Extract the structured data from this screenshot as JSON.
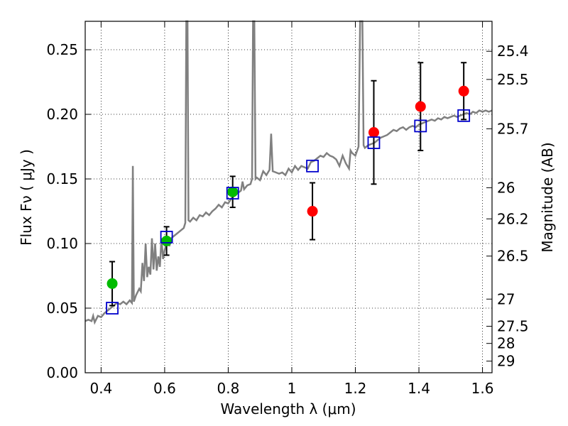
{
  "chart_data": {
    "type": "scatter",
    "xlabel": "Wavelength  λ (μm)",
    "ylabel": "Flux  Fν  ( μJy )",
    "ylabel_right": "Magnitude (AB)",
    "xlim": [
      0.35,
      1.63
    ],
    "ylim": [
      0.0,
      0.272
    ],
    "grid": true,
    "x_ticks": [
      {
        "value": 0.4,
        "label": "0.4"
      },
      {
        "value": 0.6,
        "label": "0.6"
      },
      {
        "value": 0.8,
        "label": "0.8"
      },
      {
        "value": 1.0,
        "label": "1"
      },
      {
        "value": 1.2,
        "label": "1.2"
      },
      {
        "value": 1.4,
        "label": "1.4"
      },
      {
        "value": 1.6,
        "label": "1.6"
      }
    ],
    "y_ticks": [
      {
        "value": 0.0,
        "label": "0.00"
      },
      {
        "value": 0.05,
        "label": "0.05"
      },
      {
        "value": 0.1,
        "label": "0.10"
      },
      {
        "value": 0.15,
        "label": "0.15"
      },
      {
        "value": 0.2,
        "label": "0.20"
      },
      {
        "value": 0.25,
        "label": "0.25"
      }
    ],
    "right_ticks": [
      {
        "label": "25.4",
        "flux": 0.2488
      },
      {
        "label": "25.5",
        "flux": 0.227
      },
      {
        "label": "25.7",
        "flux": 0.1888
      },
      {
        "label": "26",
        "flux": 0.1432
      },
      {
        "label": "26.2",
        "flux": 0.1191
      },
      {
        "label": "26.5",
        "flux": 0.0903
      },
      {
        "label": "27",
        "flux": 0.057
      },
      {
        "label": "27.5",
        "flux": 0.036
      },
      {
        "label": "28",
        "flux": 0.0227
      },
      {
        "label": "29",
        "flux": 0.009
      }
    ],
    "spectrum": {
      "color": "#808080",
      "points": [
        [
          0.35,
          0.04
        ],
        [
          0.36,
          0.041
        ],
        [
          0.37,
          0.04
        ],
        [
          0.375,
          0.044
        ],
        [
          0.38,
          0.039
        ],
        [
          0.39,
          0.044
        ],
        [
          0.4,
          0.043
        ],
        [
          0.41,
          0.046
        ],
        [
          0.42,
          0.048
        ],
        [
          0.43,
          0.05
        ],
        [
          0.44,
          0.052
        ],
        [
          0.45,
          0.054
        ],
        [
          0.46,
          0.053
        ],
        [
          0.47,
          0.055
        ],
        [
          0.48,
          0.053
        ],
        [
          0.49,
          0.056
        ],
        [
          0.497,
          0.054
        ],
        [
          0.5,
          0.16
        ],
        [
          0.503,
          0.055
        ],
        [
          0.51,
          0.06
        ],
        [
          0.52,
          0.065
        ],
        [
          0.525,
          0.063
        ],
        [
          0.53,
          0.085
        ],
        [
          0.535,
          0.071
        ],
        [
          0.54,
          0.1
        ],
        [
          0.545,
          0.074
        ],
        [
          0.55,
          0.082
        ],
        [
          0.555,
          0.076
        ],
        [
          0.56,
          0.104
        ],
        [
          0.565,
          0.08
        ],
        [
          0.57,
          0.1
        ],
        [
          0.575,
          0.079
        ],
        [
          0.58,
          0.09
        ],
        [
          0.585,
          0.082
        ],
        [
          0.59,
          0.104
        ],
        [
          0.595,
          0.088
        ],
        [
          0.6,
          0.095
        ],
        [
          0.605,
          0.099
        ],
        [
          0.61,
          0.103
        ],
        [
          0.615,
          0.098
        ],
        [
          0.62,
          0.104
        ],
        [
          0.63,
          0.106
        ],
        [
          0.64,
          0.108
        ],
        [
          0.65,
          0.11
        ],
        [
          0.66,
          0.112
        ],
        [
          0.665,
          0.116
        ],
        [
          0.668,
          0.272
        ],
        [
          0.672,
          0.272
        ],
        [
          0.675,
          0.118
        ],
        [
          0.68,
          0.117
        ],
        [
          0.69,
          0.12
        ],
        [
          0.7,
          0.118
        ],
        [
          0.71,
          0.122
        ],
        [
          0.72,
          0.121
        ],
        [
          0.73,
          0.124
        ],
        [
          0.74,
          0.122
        ],
        [
          0.75,
          0.125
        ],
        [
          0.76,
          0.127
        ],
        [
          0.77,
          0.13
        ],
        [
          0.78,
          0.128
        ],
        [
          0.79,
          0.132
        ],
        [
          0.8,
          0.131
        ],
        [
          0.81,
          0.135
        ],
        [
          0.82,
          0.137
        ],
        [
          0.83,
          0.139
        ],
        [
          0.84,
          0.141
        ],
        [
          0.845,
          0.148
        ],
        [
          0.85,
          0.142
        ],
        [
          0.86,
          0.145
        ],
        [
          0.87,
          0.146
        ],
        [
          0.875,
          0.15
        ],
        [
          0.878,
          0.272
        ],
        [
          0.882,
          0.272
        ],
        [
          0.886,
          0.15
        ],
        [
          0.89,
          0.151
        ],
        [
          0.9,
          0.149
        ],
        [
          0.91,
          0.156
        ],
        [
          0.92,
          0.153
        ],
        [
          0.93,
          0.157
        ],
        [
          0.935,
          0.185
        ],
        [
          0.94,
          0.156
        ],
        [
          0.95,
          0.155
        ],
        [
          0.96,
          0.154
        ],
        [
          0.97,
          0.155
        ],
        [
          0.98,
          0.153
        ],
        [
          0.99,
          0.158
        ],
        [
          1.0,
          0.155
        ],
        [
          1.01,
          0.16
        ],
        [
          1.02,
          0.157
        ],
        [
          1.03,
          0.16
        ],
        [
          1.04,
          0.159
        ],
        [
          1.05,
          0.158
        ],
        [
          1.06,
          0.163
        ],
        [
          1.07,
          0.164
        ],
        [
          1.08,
          0.166
        ],
        [
          1.09,
          0.168
        ],
        [
          1.1,
          0.167
        ],
        [
          1.11,
          0.17
        ],
        [
          1.12,
          0.168
        ],
        [
          1.13,
          0.167
        ],
        [
          1.14,
          0.165
        ],
        [
          1.15,
          0.16
        ],
        [
          1.16,
          0.168
        ],
        [
          1.17,
          0.162
        ],
        [
          1.18,
          0.158
        ],
        [
          1.185,
          0.172
        ],
        [
          1.19,
          0.17
        ],
        [
          1.2,
          0.168
        ],
        [
          1.21,
          0.175
        ],
        [
          1.215,
          0.272
        ],
        [
          1.222,
          0.272
        ],
        [
          1.226,
          0.176
        ],
        [
          1.23,
          0.174
        ],
        [
          1.24,
          0.176
        ],
        [
          1.25,
          0.177
        ],
        [
          1.26,
          0.178
        ],
        [
          1.27,
          0.18
        ],
        [
          1.28,
          0.182
        ],
        [
          1.29,
          0.183
        ],
        [
          1.3,
          0.184
        ],
        [
          1.31,
          0.186
        ],
        [
          1.32,
          0.188
        ],
        [
          1.33,
          0.187
        ],
        [
          1.34,
          0.189
        ],
        [
          1.35,
          0.19
        ],
        [
          1.36,
          0.188
        ],
        [
          1.37,
          0.19
        ],
        [
          1.38,
          0.191
        ],
        [
          1.39,
          0.19
        ],
        [
          1.4,
          0.192
        ],
        [
          1.41,
          0.193
        ],
        [
          1.42,
          0.194
        ],
        [
          1.43,
          0.195
        ],
        [
          1.44,
          0.196
        ],
        [
          1.45,
          0.195
        ],
        [
          1.46,
          0.197
        ],
        [
          1.47,
          0.196
        ],
        [
          1.48,
          0.198
        ],
        [
          1.49,
          0.197
        ],
        [
          1.5,
          0.198
        ],
        [
          1.51,
          0.199
        ],
        [
          1.52,
          0.198
        ],
        [
          1.53,
          0.199
        ],
        [
          1.54,
          0.2
        ],
        [
          1.55,
          0.201
        ],
        [
          1.56,
          0.2
        ],
        [
          1.57,
          0.202
        ],
        [
          1.58,
          0.201
        ],
        [
          1.59,
          0.203
        ],
        [
          1.6,
          0.202
        ],
        [
          1.61,
          0.203
        ],
        [
          1.62,
          0.202
        ],
        [
          1.63,
          0.203
        ]
      ]
    },
    "series": [
      {
        "color": "#00bb00",
        "marker": "circle",
        "points": [
          {
            "x": 0.435,
            "y": 0.069,
            "yerr": 0.017
          },
          {
            "x": 0.606,
            "y": 0.102,
            "yerr": 0.011
          },
          {
            "x": 0.814,
            "y": 0.14,
            "yerr": 0.012
          }
        ]
      },
      {
        "color": "#ff0000",
        "marker": "circle",
        "points": [
          {
            "x": 1.065,
            "y": 0.125,
            "yerr": 0.022
          },
          {
            "x": 1.258,
            "y": 0.186,
            "yerr": 0.04
          },
          {
            "x": 1.405,
            "y": 0.206,
            "yerr": 0.034
          },
          {
            "x": 1.541,
            "y": 0.218,
            "yerr": 0.022
          }
        ]
      },
      {
        "color": "#0000cc",
        "marker": "open-square",
        "points": [
          {
            "x": 0.435,
            "y": 0.05
          },
          {
            "x": 0.606,
            "y": 0.105
          },
          {
            "x": 0.814,
            "y": 0.139
          },
          {
            "x": 1.065,
            "y": 0.16
          },
          {
            "x": 1.258,
            "y": 0.178
          },
          {
            "x": 1.405,
            "y": 0.191
          },
          {
            "x": 1.541,
            "y": 0.199
          }
        ]
      }
    ]
  }
}
